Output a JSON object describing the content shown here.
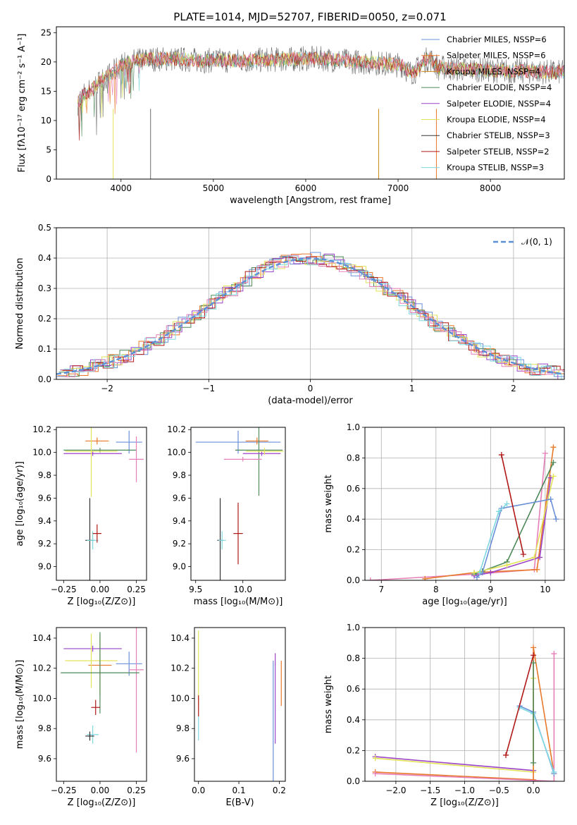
{
  "figure": {
    "title": "PLATE=1014, MJD=52707, FIBERID=0050, z=0.071",
    "palette": {
      "chabrier_miles": "#6a8fd8",
      "salpeter_miles": "#e8782a",
      "kroupa_miles": "#d08a1a",
      "chabrier_elodie": "#4f8a5a",
      "salpeter_elodie": "#9b44c8",
      "kroupa_elodie": "#e3e35a",
      "chabrier_stelib": "#333333",
      "salpeter_stelib": "#b01818",
      "kroupa_stelib": "#7fd8e0",
      "pink": "#e67fb8",
      "lightgreen": "#b8e05a",
      "normal_curve": "#5b8fd6",
      "spectrum_gray": "#6a6a6a"
    }
  },
  "chart_data": [
    {
      "id": "spectrum",
      "type": "line",
      "xlabel": "wavelength [Angstrom, rest frame]",
      "ylabel": "Flux [fλ10⁻¹⁷ erg cm⁻² s⁻¹ A⁻¹]",
      "xlim": [
        3300,
        8800
      ],
      "ylim": [
        0,
        26
      ],
      "xticks": [
        4000,
        5000,
        6000,
        7000,
        8000
      ],
      "yticks": [
        0,
        5,
        10,
        15,
        20,
        25
      ],
      "legend_position": "top-right",
      "legend": [
        "Chabrier MILES, NSSP=6",
        "Salpeter MILES, NSSP=6",
        "Kroupa MILES, NSSP=4",
        "Chabrier ELODIE, NSSP=4",
        "Salpeter ELODIE, NSSP=4",
        "Kroupa ELODIE, NSSP=4",
        "Chabrier STELIB, NSSP=3",
        "Salpeter STELIB, NSSP=2",
        "Kroupa STELIB, NSSP=3"
      ],
      "envelope": {
        "x": [
          3530,
          3600,
          3700,
          3800,
          3900,
          4000,
          4100,
          4200,
          4300,
          4400,
          4500,
          4600,
          4700,
          4800,
          4900,
          5000,
          5200,
          5400,
          5600,
          5800,
          6000,
          6200,
          6400,
          6600,
          6800,
          7000,
          7200,
          7400,
          7600,
          7800,
          8000,
          8200,
          8400,
          8600,
          8800
        ],
        "y": [
          13,
          14.5,
          15.5,
          17,
          18,
          19.5,
          20,
          20.3,
          20.5,
          20.5,
          20.5,
          20.5,
          20.4,
          20.3,
          20.2,
          20.3,
          20.2,
          20.2,
          20.4,
          20.4,
          20.6,
          20.5,
          20.2,
          20.0,
          19.8,
          19.5,
          19.4,
          19.2,
          18.8,
          18.7,
          18.6,
          18.4,
          18.4,
          18.3,
          18.2
        ]
      }
    },
    {
      "id": "residual-histogram",
      "type": "line",
      "xlabel": "(data-model)/error",
      "ylabel": "Normed distribution",
      "xlim": [
        -2.5,
        2.5
      ],
      "ylim": [
        0,
        0.5
      ],
      "xticks": [
        -2,
        -1,
        0,
        1,
        2
      ],
      "yticks": [
        0.0,
        0.1,
        0.2,
        0.3,
        0.4,
        0.5
      ],
      "grid": true,
      "legend_position": "top-right",
      "legend": [
        "𝒩(0, 1)"
      ]
    },
    {
      "id": "age-vs-z",
      "type": "scatter",
      "xlabel": "Z [log₁₀(Z/Z⊙)]",
      "ylabel": "age  [log₁₀(age/yr)]",
      "xlim": [
        -0.3,
        0.32
      ],
      "ylim": [
        8.88,
        10.22
      ],
      "xticks": [
        -0.25,
        0.0,
        0.25
      ],
      "yticks": [
        9.0,
        9.2,
        9.4,
        9.6,
        9.8,
        10.0,
        10.2
      ],
      "grid": false,
      "points": [
        {
          "x": 0.2,
          "y": 10.09,
          "xerr": 0.09,
          "yerr": 0.1,
          "c": "chabrier_miles"
        },
        {
          "x": -0.02,
          "y": 10.1,
          "xerr": 0.08,
          "yerr": 0.03,
          "c": "salpeter_miles"
        },
        {
          "x": 0.0,
          "y": 10.02,
          "xerr": 0.25,
          "yerr": 0.02,
          "c": "chabrier_elodie"
        },
        {
          "x": -0.05,
          "y": 9.99,
          "xerr": 0.2,
          "yerr": 0.02,
          "c": "salpeter_elodie"
        },
        {
          "x": -0.06,
          "y": 10.01,
          "xerr": 0.18,
          "yerr": 0.4,
          "c": "kroupa_elodie"
        },
        {
          "x": 0.25,
          "y": 9.94,
          "xerr": 0.05,
          "yerr": 0.2,
          "c": "pink"
        },
        {
          "x": -0.07,
          "y": 9.23,
          "xerr": 0.03,
          "yerr": 0.37,
          "c": "chabrier_stelib"
        },
        {
          "x": -0.05,
          "y": 9.23,
          "xerr": 0.04,
          "yerr": 0.08,
          "c": "kroupa_stelib"
        },
        {
          "x": -0.02,
          "y": 9.29,
          "xerr": 0.03,
          "yerr": 0.08,
          "c": "salpeter_stelib"
        }
      ]
    },
    {
      "id": "age-vs-mass",
      "type": "scatter",
      "xlabel": "mass [log₁₀(M/M⊙)]",
      "ylabel": "",
      "xlim": [
        9.45,
        10.45
      ],
      "ylim": [
        8.88,
        10.22
      ],
      "xticks": [
        9.5,
        10.0
      ],
      "yticks": [
        9.0,
        9.2,
        9.4,
        9.6,
        9.8,
        10.0,
        10.2
      ],
      "grid": false,
      "points": [
        {
          "x": 9.95,
          "y": 10.09,
          "xerr": 0.45,
          "yerr": 0.1,
          "c": "chabrier_miles"
        },
        {
          "x": 10.15,
          "y": 10.1,
          "xerr": 0.12,
          "yerr": 0.03,
          "c": "salpeter_miles"
        },
        {
          "x": 10.17,
          "y": 10.02,
          "xerr": 0.25,
          "yerr": 0.4,
          "c": "chabrier_elodie"
        },
        {
          "x": 10.2,
          "y": 9.99,
          "xerr": 0.2,
          "yerr": 0.02,
          "c": "salpeter_elodie"
        },
        {
          "x": 10.23,
          "y": 10.01,
          "xerr": 0.2,
          "yerr": 0.03,
          "c": "kroupa_elodie"
        },
        {
          "x": 10.0,
          "y": 9.94,
          "xerr": 0.2,
          "yerr": 0.02,
          "c": "pink"
        },
        {
          "x": 9.76,
          "y": 9.23,
          "xerr": 0.03,
          "yerr": 0.37,
          "c": "chabrier_stelib"
        },
        {
          "x": 9.78,
          "y": 9.23,
          "xerr": 0.04,
          "yerr": 0.08,
          "c": "kroupa_stelib"
        },
        {
          "x": 9.95,
          "y": 9.29,
          "xerr": 0.05,
          "yerr": 0.27,
          "c": "salpeter_stelib"
        }
      ]
    },
    {
      "id": "mass-weight-vs-age",
      "type": "line",
      "xlabel": "age  [log₁₀(age/yr)]",
      "ylabel": "mass weight",
      "xlim": [
        6.7,
        10.35
      ],
      "ylim": [
        0,
        1.0
      ],
      "xticks": [
        7,
        8,
        9,
        10
      ],
      "yticks": [
        0.0,
        0.2,
        0.4,
        0.6,
        0.8,
        1.0
      ],
      "grid": true,
      "series": [
        {
          "c": "pink",
          "x": [
            6.8,
            8.7,
            9.8,
            10.0
          ],
          "y": [
            0.0,
            0.04,
            0.07,
            0.83
          ]
        },
        {
          "c": "salpeter_miles",
          "x": [
            7.8,
            8.7,
            9.85,
            10.15
          ],
          "y": [
            0.01,
            0.05,
            0.07,
            0.87
          ]
        },
        {
          "c": "chabrier_elodie",
          "x": [
            8.7,
            8.85,
            9.3,
            10.15
          ],
          "y": [
            0.04,
            0.06,
            0.12,
            0.77
          ]
        },
        {
          "c": "salpeter_elodie",
          "x": [
            8.7,
            9.0,
            9.9,
            10.1
          ],
          "y": [
            0.03,
            0.05,
            0.15,
            0.67
          ]
        },
        {
          "c": "kroupa_elodie",
          "x": [
            8.7,
            9.3,
            9.8,
            10.15
          ],
          "y": [
            0.05,
            0.1,
            0.15,
            0.68
          ]
        },
        {
          "c": "chabrier_miles",
          "x": [
            8.75,
            8.85,
            9.2,
            10.1,
            10.2
          ],
          "y": [
            0.02,
            0.05,
            0.47,
            0.53,
            0.4
          ]
        },
        {
          "c": "kroupa_stelib",
          "x": [
            8.8,
            9.15,
            9.3
          ],
          "y": [
            0.05,
            0.45,
            0.5
          ]
        },
        {
          "c": "salpeter_stelib",
          "x": [
            9.2,
            9.6
          ],
          "y": [
            0.82,
            0.17
          ]
        }
      ]
    },
    {
      "id": "mass-vs-z",
      "type": "scatter",
      "xlabel": "Z [log₁₀(Z/Z⊙)]",
      "ylabel": "mass [log₁₀(M/M⊙)]",
      "xlim": [
        -0.3,
        0.32
      ],
      "ylim": [
        9.45,
        10.47
      ],
      "xticks": [
        -0.25,
        0.0,
        0.25
      ],
      "yticks": [
        9.6,
        9.8,
        10.0,
        10.2,
        10.4
      ],
      "grid": false,
      "points": [
        {
          "x": 0.2,
          "y": 10.23,
          "xerr": 0.09,
          "yerr": 0.08,
          "c": "chabrier_miles"
        },
        {
          "x": 0.25,
          "y": 10.19,
          "xerr": 0.05,
          "yerr": 0.55,
          "c": "pink"
        },
        {
          "x": 0.0,
          "y": 10.22,
          "xerr": 0.08,
          "yerr": 0.2,
          "c": "salpeter_miles"
        },
        {
          "x": -0.05,
          "y": 10.33,
          "xerr": 0.2,
          "yerr": 0.02,
          "c": "salpeter_elodie"
        },
        {
          "x": -0.06,
          "y": 10.25,
          "xerr": 0.18,
          "yerr": 0.18,
          "c": "kroupa_elodie"
        },
        {
          "x": 0.0,
          "y": 10.17,
          "xerr": 0.27,
          "yerr": 0.27,
          "c": "chabrier_elodie"
        },
        {
          "x": -0.03,
          "y": 9.94,
          "xerr": 0.03,
          "yerr": 0.05,
          "c": "salpeter_stelib"
        },
        {
          "x": -0.05,
          "y": 9.76,
          "xerr": 0.04,
          "yerr": 0.06,
          "c": "kroupa_stelib"
        },
        {
          "x": -0.07,
          "y": 9.75,
          "xerr": 0.03,
          "yerr": 0.03,
          "c": "chabrier_stelib"
        }
      ]
    },
    {
      "id": "mass-vs-ebv",
      "type": "scatter",
      "xlabel": "E(B-V)",
      "ylabel": "",
      "xlim": [
        -0.01,
        0.215
      ],
      "ylim": [
        9.45,
        10.47
      ],
      "xticks": [
        0.0,
        0.1,
        0.2
      ],
      "yticks": [
        9.6,
        9.8,
        10.0,
        10.2,
        10.4
      ],
      "grid": false,
      "points": [
        {
          "x": 0.0,
          "y": 10.2,
          "xerr": 0,
          "yerr": 0.25,
          "c": "kroupa_elodie"
        },
        {
          "x": 0.0,
          "y": 9.95,
          "xerr": 0,
          "yerr": 0.07,
          "c": "salpeter_stelib"
        },
        {
          "x": 0.0,
          "y": 9.8,
          "xerr": 0,
          "yerr": 0.08,
          "c": "kroupa_stelib"
        },
        {
          "x": 0.185,
          "y": 9.85,
          "xerr": 0,
          "yerr": 0.4,
          "c": "chabrier_miles"
        },
        {
          "x": 0.19,
          "y": 10.0,
          "xerr": 0,
          "yerr": 0.3,
          "c": "salpeter_elodie"
        },
        {
          "x": 0.205,
          "y": 10.1,
          "xerr": 0,
          "yerr": 0.15,
          "c": "salpeter_miles"
        }
      ]
    },
    {
      "id": "mass-weight-vs-z",
      "type": "line",
      "xlabel": "Z [log₁₀(Z/Z⊙)]",
      "ylabel": "mass weight",
      "xlim": [
        -2.45,
        0.45
      ],
      "ylim": [
        0,
        1.0
      ],
      "xticks": [
        -2.0,
        -1.5,
        -1.0,
        -0.5,
        0.0
      ],
      "yticks": [
        0.0,
        0.2,
        0.4,
        0.6,
        0.8,
        1.0
      ],
      "grid": true,
      "series": [
        {
          "c": "salpeter_elodie",
          "x": [
            -2.3,
            0.0
          ],
          "y": [
            0.16,
            0.07
          ]
        },
        {
          "c": "kroupa_elodie",
          "x": [
            -2.3,
            0.0,
            0.0
          ],
          "y": [
            0.15,
            0.06,
            0.67
          ]
        },
        {
          "c": "salpeter_miles",
          "x": [
            -2.3,
            0.0,
            0.0,
            0.3
          ],
          "y": [
            0.06,
            0.01,
            0.87,
            0.05
          ]
        },
        {
          "c": "pink",
          "x": [
            -2.3,
            0.3,
            0.3
          ],
          "y": [
            0.05,
            0.0,
            0.83
          ]
        },
        {
          "c": "chabrier_miles",
          "x": [
            -0.2,
            0.0,
            0.3
          ],
          "y": [
            0.49,
            0.45,
            0.05
          ]
        },
        {
          "c": "kroupa_stelib",
          "x": [
            -0.2,
            0.0,
            0.3
          ],
          "y": [
            0.48,
            0.44,
            0.06
          ]
        },
        {
          "c": "salpeter_stelib",
          "x": [
            -0.4,
            0.0
          ],
          "y": [
            0.17,
            0.82
          ]
        },
        {
          "c": "chabrier_elodie",
          "x": [
            0.0,
            0.0
          ],
          "y": [
            0.12,
            0.77
          ]
        }
      ]
    }
  ]
}
